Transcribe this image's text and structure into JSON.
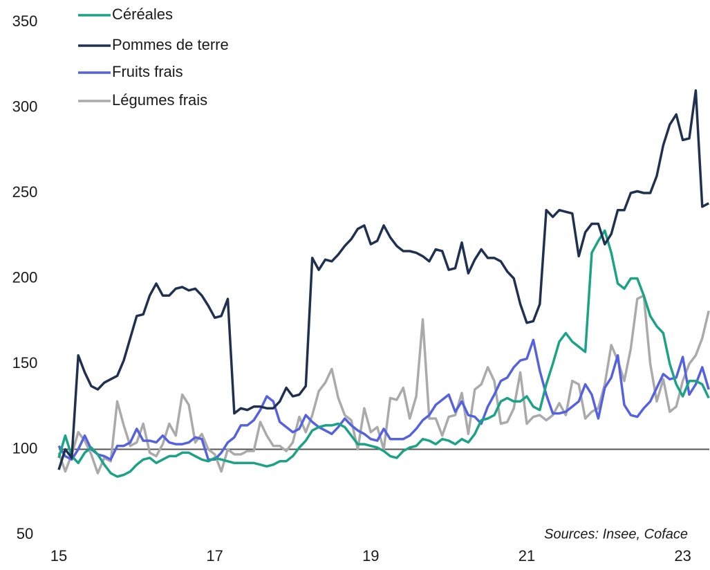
{
  "chart_data": {
    "type": "line",
    "annotation": "Sources: Insee, Coface",
    "x": [
      15,
      15.0833,
      15.1667,
      15.25,
      15.3333,
      15.4167,
      15.5,
      15.5833,
      15.6667,
      15.75,
      15.8333,
      15.9167,
      16,
      16.0833,
      16.1667,
      16.25,
      16.3333,
      16.4167,
      16.5,
      16.5833,
      16.6667,
      16.75,
      16.8333,
      16.9167,
      17,
      17.0833,
      17.1667,
      17.25,
      17.3333,
      17.4167,
      17.5,
      17.5833,
      17.6667,
      17.75,
      17.8333,
      17.9167,
      18,
      18.0833,
      18.1667,
      18.25,
      18.3333,
      18.4167,
      18.5,
      18.5833,
      18.6667,
      18.75,
      18.8333,
      18.9167,
      19,
      19.0833,
      19.1667,
      19.25,
      19.3333,
      19.4167,
      19.5,
      19.5833,
      19.6667,
      19.75,
      19.8333,
      19.9167,
      20,
      20.0833,
      20.1667,
      20.25,
      20.3333,
      20.4167,
      20.5,
      20.5833,
      20.6667,
      20.75,
      20.8333,
      20.9167,
      21,
      21.0833,
      21.1667,
      21.25,
      21.3333,
      21.4167,
      21.5,
      21.5833,
      21.6667,
      21.75,
      21.8333,
      21.9167,
      22,
      22.0833,
      22.1667,
      22.25,
      22.3333,
      22.4167,
      22.5,
      22.5833,
      22.6667,
      22.75,
      22.8333,
      22.9167,
      23,
      23.0833,
      23.1667,
      23.25,
      23.3333
    ],
    "series": [
      {
        "name": "Céréales",
        "color": "#1aa384",
        "values": [
          95,
          108,
          96,
          92,
          98,
          101,
          97,
          91,
          86,
          84,
          85,
          87,
          91,
          94,
          95,
          92,
          94,
          96,
          96,
          98,
          98,
          96,
          94,
          93,
          95,
          94,
          93,
          92,
          92,
          92,
          92,
          91,
          90,
          91,
          93,
          93,
          96,
          101,
          105,
          111,
          113,
          114,
          114,
          115,
          113,
          108,
          103,
          103,
          102,
          101,
          99,
          96,
          95,
          99,
          101,
          102,
          106,
          105,
          103,
          106,
          105,
          103,
          106,
          104,
          109,
          117,
          118,
          120,
          128,
          130,
          128,
          128,
          131,
          125,
          123,
          138,
          150,
          163,
          168,
          163,
          160,
          157,
          215,
          222,
          228,
          215,
          197,
          194,
          200,
          200,
          190,
          178,
          172,
          168,
          150,
          138,
          131,
          140,
          140,
          138,
          130
        ]
      },
      {
        "name": "Pommes de terre",
        "color": "#1f3050",
        "values": [
          88,
          100,
          95,
          155,
          145,
          137,
          135,
          139,
          141,
          143,
          152,
          165,
          178,
          179,
          190,
          197,
          190,
          190,
          194,
          195,
          193,
          194,
          190,
          184,
          177,
          178,
          188,
          121,
          124,
          123,
          125,
          125,
          124,
          124,
          128,
          136,
          131,
          132,
          137,
          212,
          205,
          211,
          210,
          214,
          219,
          223,
          229,
          231,
          220,
          222,
          231,
          224,
          219,
          216,
          216,
          215,
          213,
          210,
          217,
          216,
          205,
          206,
          221,
          203,
          211,
          217,
          212,
          212,
          210,
          204,
          200,
          185,
          174,
          175,
          185,
          240,
          236,
          240,
          239,
          238,
          213,
          227,
          232,
          232,
          220,
          226,
          240,
          240,
          250,
          251,
          250,
          250,
          260,
          278,
          290,
          296,
          281,
          282,
          310,
          242,
          244
        ]
      },
      {
        "name": "Fruits frais",
        "color": "#5562e0",
        "values": [
          102,
          96,
          94,
          100,
          108,
          100,
          97,
          96,
          94,
          102,
          102,
          104,
          112,
          105,
          105,
          104,
          108,
          104,
          103,
          103,
          104,
          107,
          106,
          94,
          94,
          98,
          104,
          107,
          114,
          114,
          117,
          123,
          131,
          128,
          116,
          113,
          110,
          112,
          120,
          116,
          113,
          111,
          109,
          113,
          118,
          114,
          111,
          109,
          106,
          105,
          112,
          106,
          106,
          106,
          108,
          112,
          117,
          120,
          126,
          129,
          132,
          122,
          128,
          120,
          119,
          115,
          125,
          132,
          140,
          142,
          148,
          152,
          153,
          164,
          146,
          132,
          121,
          121,
          122,
          125,
          128,
          138,
          132,
          118,
          136,
          142,
          155,
          126,
          120,
          119,
          124,
          128,
          136,
          144,
          141,
          142,
          154,
          132,
          138,
          148,
          135
        ]
      },
      {
        "name": "Légumes frais",
        "color": "#aaaaaa",
        "values": [
          98,
          87,
          97,
          110,
          105,
          97,
          86,
          95,
          93,
          128,
          114,
          102,
          104,
          115,
          98,
          96,
          103,
          115,
          108,
          132,
          126,
          104,
          109,
          100,
          97,
          87,
          100,
          97,
          97,
          99,
          99,
          116,
          108,
          102,
          102,
          99,
          104,
          119,
          110,
          120,
          134,
          139,
          147,
          130,
          120,
          117,
          100,
          124,
          110,
          113,
          100,
          130,
          129,
          136,
          118,
          131,
          176,
          118,
          118,
          108,
          119,
          120,
          133,
          109,
          135,
          138,
          148,
          140,
          115,
          116,
          124,
          145,
          115,
          119,
          120,
          117,
          120,
          127,
          120,
          140,
          138,
          118,
          122,
          124,
          138,
          161,
          152,
          140,
          159,
          188,
          190,
          150,
          128,
          141,
          122,
          125,
          140,
          150,
          155,
          165,
          181
        ]
      }
    ],
    "reference_line": 100,
    "xlim": [
      15,
      23.34
    ],
    "xticks": [
      15,
      17,
      19,
      21,
      23
    ],
    "ylim": [
      50,
      350
    ],
    "yticks": [
      50,
      100,
      150,
      200,
      250,
      300,
      350
    ]
  }
}
